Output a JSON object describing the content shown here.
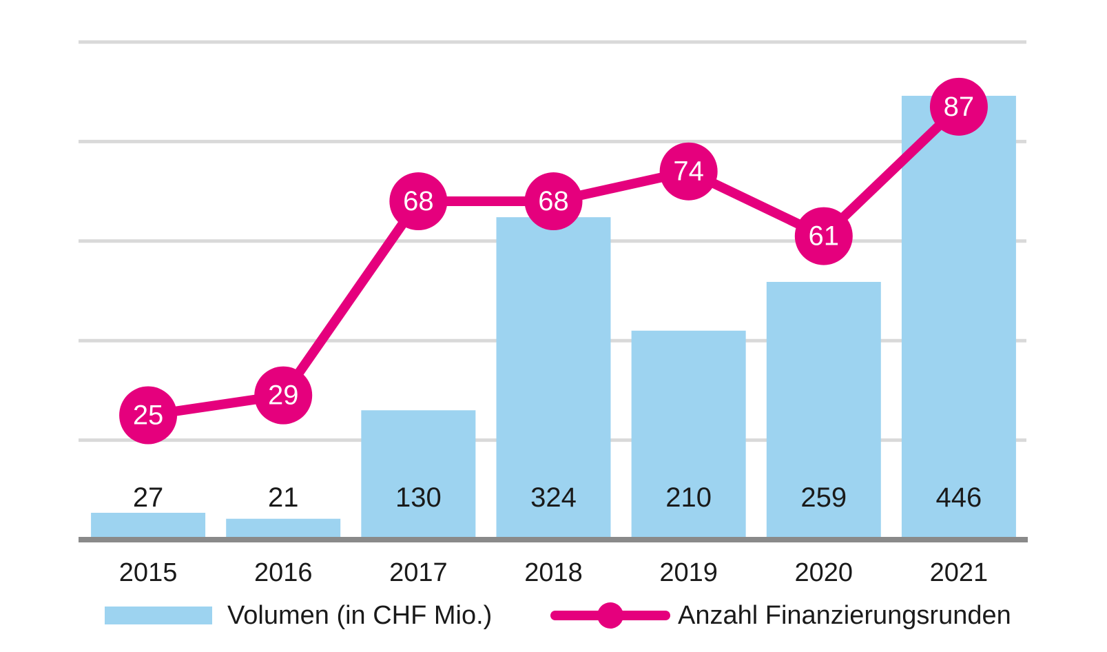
{
  "chart_data": {
    "type": "bar+line combo",
    "title": "",
    "categories": [
      "2015",
      "2016",
      "2017",
      "2018",
      "2019",
      "2020",
      "2021"
    ],
    "series": [
      {
        "name": "Volumen (in CHF Mio.)",
        "type": "bar",
        "values": [
          27,
          21,
          130,
          324,
          210,
          259,
          446
        ],
        "color": "#9DD3F0",
        "axis_max": 500,
        "axis_min": 0,
        "data_labels": "black, all aligned on one row above baseline"
      },
      {
        "name": "Anzahl Finanzierungsrunden",
        "type": "line",
        "values": [
          25,
          29,
          68,
          68,
          74,
          61,
          87
        ],
        "color": "#E5007D",
        "axis_max": 100,
        "axis_min": 0,
        "data_labels": "white, inside circular markers"
      }
    ],
    "gridlines_bar_axis_values": [
      100,
      200,
      300,
      400,
      500
    ],
    "grid": true,
    "legend_position": "bottom",
    "colors": {
      "grid": "#D9D9D9",
      "axis": "#8A8A8A",
      "label_text": "#1A1A1A",
      "marker_text": "#FFFFFF",
      "background": "#FFFFFF"
    }
  },
  "legend": {
    "items": [
      {
        "label": "Volumen (in CHF Mio.)",
        "swatch": "blue-bar-swatch"
      },
      {
        "label": "Anzahl Finanzierungsrunden",
        "swatch": "pink-line-marker-swatch"
      }
    ]
  }
}
